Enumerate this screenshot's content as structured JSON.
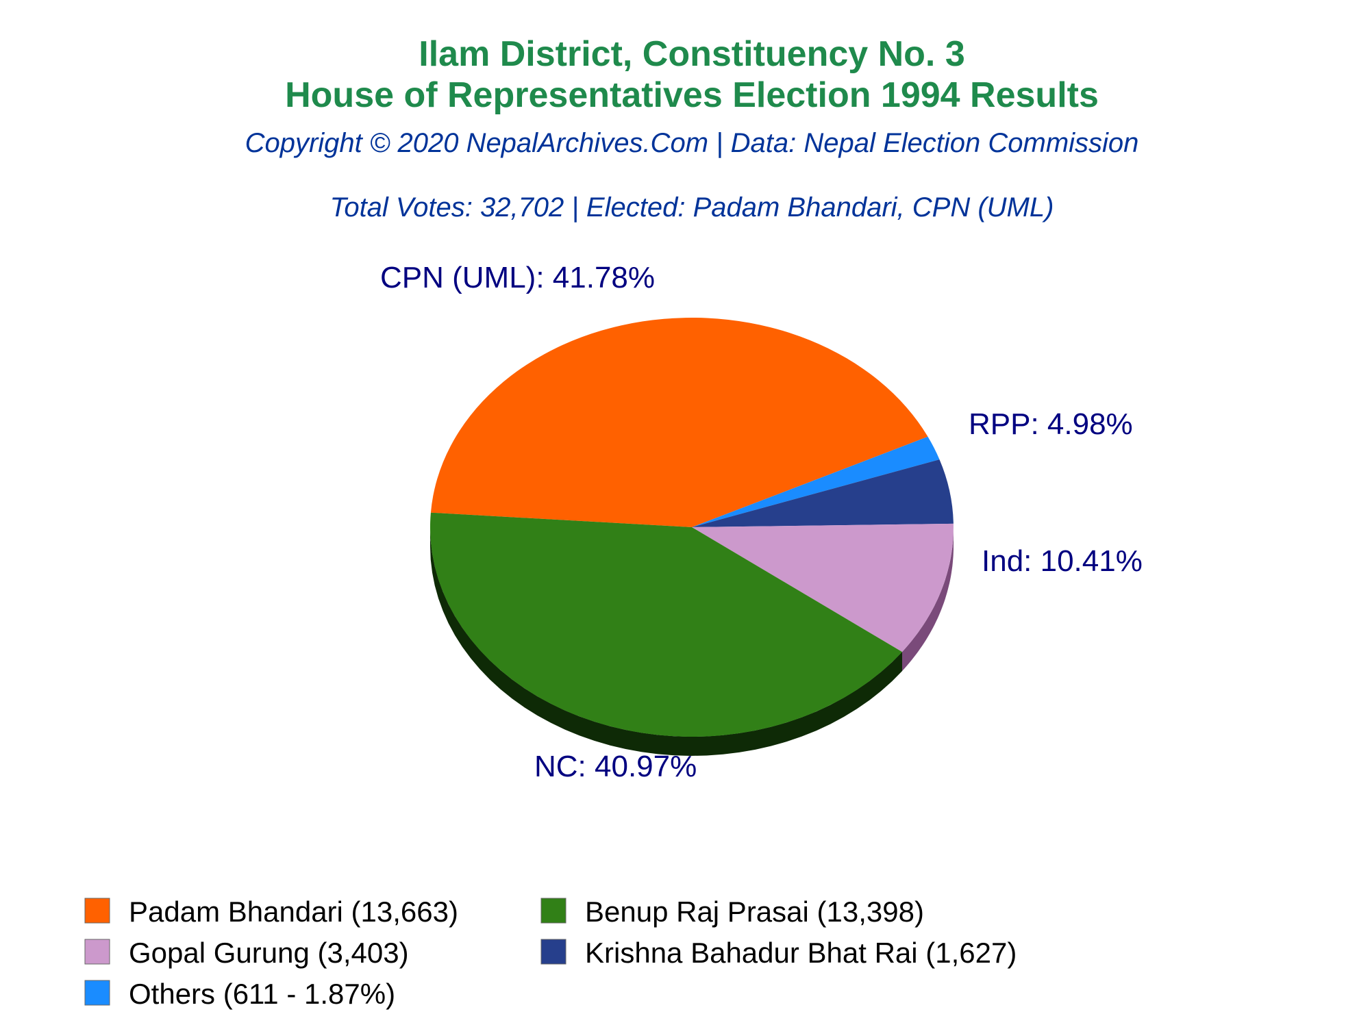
{
  "chart_data": {
    "type": "pie",
    "title_line1": "Ilam District, Constituency No. 3",
    "title_line2": "House of Representatives Election 1994 Results",
    "subtitle": "Copyright © 2020 NepalArchives.Com | Data: Nepal Election Commission",
    "summary": "Total Votes: 32,702 | Elected: Padam Bhandari, CPN (UML)",
    "slices": [
      {
        "party": "CPN (UML)",
        "candidate": "Padam Bhandari",
        "votes": 13663,
        "percent": 41.78,
        "color": "#ff6100",
        "side_color": "#7a2e00",
        "label": "CPN (UML): 41.78%",
        "legend": "Padam Bhandari (13,663)"
      },
      {
        "party": "NC",
        "candidate": "Benup Raj Prasai",
        "votes": 13398,
        "percent": 40.97,
        "color": "#318017",
        "side_color": "#0e2a06",
        "label": "NC: 40.97%",
        "legend": "Benup Raj Prasai (13,398)"
      },
      {
        "party": "Ind",
        "candidate": "Gopal Gurung",
        "votes": 3403,
        "percent": 10.41,
        "color": "#cc99cc",
        "side_color": "#7a4a7a",
        "label": "Ind: 10.41%",
        "legend": "Gopal Gurung (3,403)"
      },
      {
        "party": "RPP",
        "candidate": "Krishna Bahadur Bhat Rai",
        "votes": 1627,
        "percent": 4.98,
        "color": "#263f8c",
        "side_color": "#141f47",
        "label": "RPP: 4.98%",
        "legend": "Krishna Bahadur Bhat Rai (1,627)"
      },
      {
        "party": "Others",
        "candidate": "Others",
        "votes": 611,
        "percent": 1.87,
        "color": "#1a8cff",
        "side_color": "#0a4480",
        "label": "",
        "legend": "Others (611 - 1.87%)"
      }
    ],
    "colors": {
      "title": "#1f8a4c",
      "subtitle": "#003399",
      "label": "#000080"
    }
  }
}
